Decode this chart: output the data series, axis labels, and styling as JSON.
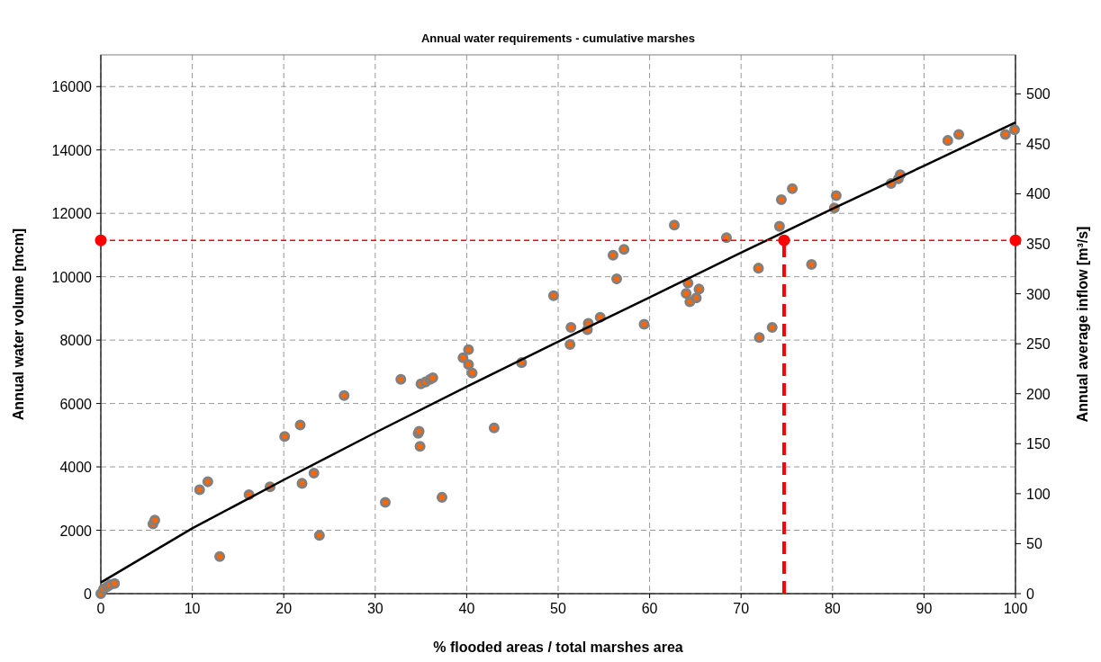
{
  "chart_data": {
    "type": "scatter",
    "title": "Annual water requirements - cumulative marshes",
    "xlabel": "% flooded areas / total marshes area",
    "ylabel": "Annual water volume [mcm]",
    "y2label": "Annual average inflow [m³/s]",
    "xlim": [
      0,
      100
    ],
    "xticks": [
      0,
      10,
      20,
      30,
      40,
      50,
      60,
      70,
      80,
      90,
      100
    ],
    "ylim": [
      0,
      17000
    ],
    "yticks": [
      0,
      2000,
      4000,
      6000,
      8000,
      10000,
      12000,
      14000,
      16000
    ],
    "y2lim": [
      0,
      539
    ],
    "y2ticks": [
      0,
      50,
      100,
      150,
      200,
      250,
      300,
      350,
      400,
      450,
      500
    ],
    "grid": true,
    "series": [
      {
        "color": "#ff6600",
        "marker": "circle",
        "x": [
          0,
          0.3,
          0.7,
          1,
          1.5,
          5.7,
          5.9,
          10.8,
          11.7,
          13,
          16.2,
          18.5,
          20.1,
          21.8,
          22,
          23.3,
          23.9,
          26.6,
          31.1,
          32.8,
          34.7,
          34.8,
          34.9,
          35,
          35.5,
          36,
          36.3,
          37.3,
          39.6,
          40.2,
          40.2,
          40.6,
          43,
          46,
          49.5,
          51.3,
          51.4,
          53.2,
          53.3,
          54.6,
          56,
          56.4,
          57.2,
          59.4,
          62.7,
          64,
          64.2,
          64.4,
          65.1,
          65.4,
          68.4,
          71.9,
          72,
          73.4,
          74.2,
          74.4,
          75.6,
          77.7,
          80.2,
          80.4,
          86.4,
          87.2,
          87.4,
          92.6,
          93.8,
          98.9,
          99.9
        ],
        "values": [
          0,
          150,
          220,
          280,
          320,
          2200,
          2320,
          3280,
          3530,
          1170,
          3120,
          3370,
          4960,
          5320,
          3480,
          3800,
          1840,
          6250,
          2880,
          6760,
          5060,
          5120,
          4650,
          6620,
          6680,
          6760,
          6810,
          3040,
          7440,
          7700,
          7230,
          6960,
          5230,
          7290,
          9400,
          7860,
          8400,
          8330,
          8530,
          8720,
          10680,
          9930,
          10860,
          8500,
          11630,
          9470,
          9800,
          9210,
          9330,
          9610,
          11230,
          10270,
          8080,
          8400,
          11590,
          12430,
          12780,
          10390,
          12170,
          12560,
          12940,
          13090,
          13220,
          14300,
          14490,
          14490,
          14640
        ]
      },
      {
        "type": "line",
        "color": "#000000",
        "marker": "none",
        "line_style": "solid",
        "x": [
          0,
          10,
          20,
          30,
          40,
          50,
          60,
          70,
          80,
          90,
          100
        ],
        "values": [
          350,
          2060,
          3590,
          5080,
          6530,
          7950,
          9350,
          10760,
          12140,
          13500,
          14870
        ]
      },
      {
        "type": "line",
        "color": "#ff0000",
        "marker": "circle",
        "line_style": "dashed",
        "x": [
          0,
          74.7,
          100
        ],
        "values": [
          11150,
          11150,
          11150
        ]
      },
      {
        "type": "line",
        "color": "#ff0000",
        "marker": "none",
        "line_style": "dashed",
        "x": [
          74.7,
          74.7
        ],
        "values": [
          0,
          11150
        ]
      }
    ]
  }
}
